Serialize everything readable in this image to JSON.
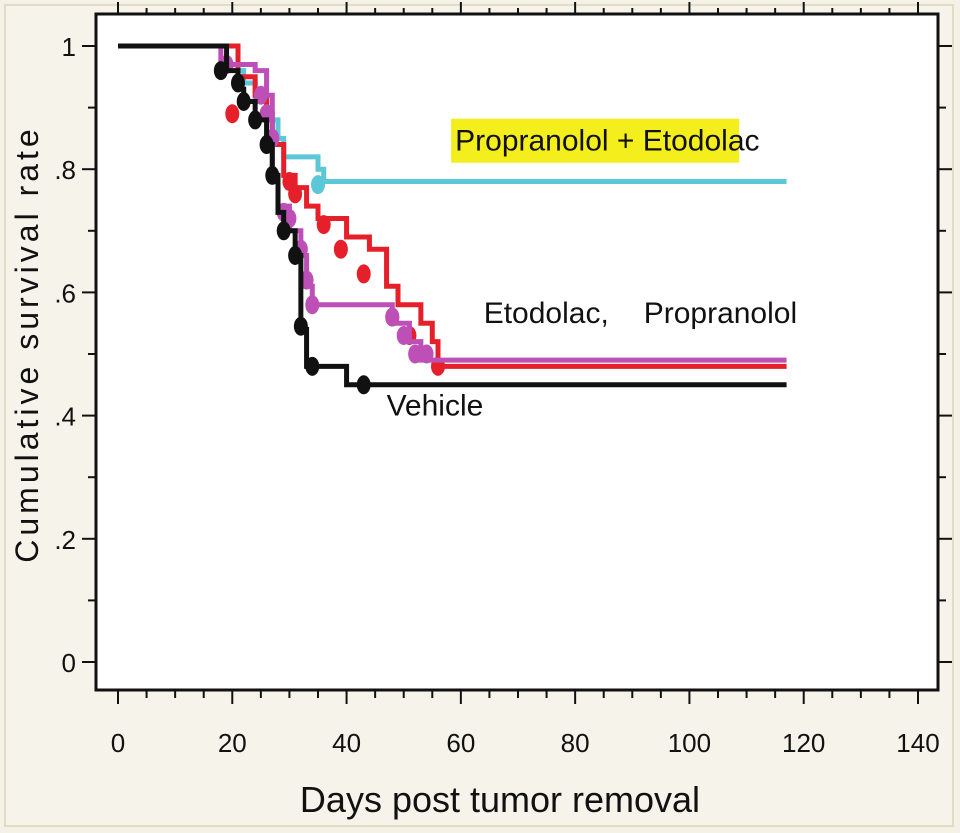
{
  "chart_data": {
    "type": "line",
    "subtype": "kaplan-meier step",
    "xlabel": "Days post tumor removal",
    "ylabel": "Cumulative survival rate",
    "xlim": [
      -4,
      142
    ],
    "ylim": [
      -0.05,
      1.05
    ],
    "x_ticks": [
      0,
      20,
      40,
      60,
      80,
      100,
      120,
      140
    ],
    "y_ticks": [
      0,
      0.2,
      0.4,
      0.6,
      0.8,
      1
    ],
    "y_tick_labels": [
      "0",
      ".2",
      ".4",
      ".6",
      ".8",
      "1"
    ],
    "grid": false,
    "annotations": [
      {
        "id": "annot-prop-etod",
        "text": "Propranolol + Etodolac",
        "highlight": "#f3ee1c",
        "x": 59,
        "y": 0.83
      },
      {
        "id": "annot-etodolac",
        "text": "Etodolac,",
        "x": 64,
        "y": 0.55
      },
      {
        "id": "annot-propranolol",
        "text": "Propranolol",
        "x": 92,
        "y": 0.55
      },
      {
        "id": "annot-vehicle",
        "text": "Vehicle",
        "x": 47,
        "y": 0.4
      }
    ],
    "series": [
      {
        "key": "propranolol-etodolac",
        "color": "#5cc7d6",
        "steps": [
          [
            0,
            1
          ],
          [
            20,
            1
          ],
          [
            21,
            0.96
          ],
          [
            22,
            0.94
          ],
          [
            24,
            0.91
          ],
          [
            26,
            0.88
          ],
          [
            28,
            0.85
          ],
          [
            29,
            0.82
          ],
          [
            35,
            0.8
          ],
          [
            36,
            0.78
          ],
          [
            117,
            0.78
          ]
        ],
        "censored": [
          [
            35,
            0.775
          ]
        ]
      },
      {
        "key": "etodolac",
        "color": "#e5202a",
        "steps": [
          [
            0,
            1
          ],
          [
            21,
            1
          ],
          [
            21,
            0.95
          ],
          [
            24,
            0.92
          ],
          [
            26,
            0.89
          ],
          [
            27,
            0.84
          ],
          [
            29,
            0.79
          ],
          [
            31,
            0.77
          ],
          [
            33,
            0.74
          ],
          [
            35,
            0.72
          ],
          [
            40,
            0.69
          ],
          [
            44,
            0.67
          ],
          [
            47,
            0.61
          ],
          [
            49,
            0.58
          ],
          [
            53,
            0.55
          ],
          [
            55,
            0.52
          ],
          [
            56,
            0.48
          ],
          [
            117,
            0.48
          ]
        ],
        "censored": [
          [
            20,
            0.89
          ],
          [
            30,
            0.78
          ],
          [
            31,
            0.76
          ],
          [
            36,
            0.71
          ],
          [
            39,
            0.67
          ],
          [
            43,
            0.63
          ],
          [
            48,
            0.56
          ],
          [
            51,
            0.53
          ],
          [
            56,
            0.48
          ]
        ]
      },
      {
        "key": "propranolol",
        "color": "#bd4fb6",
        "steps": [
          [
            0,
            1
          ],
          [
            18,
            1
          ],
          [
            18,
            0.97
          ],
          [
            24,
            0.96
          ],
          [
            26,
            0.92
          ],
          [
            27,
            0.86
          ],
          [
            27,
            0.79
          ],
          [
            28,
            0.74
          ],
          [
            30,
            0.7
          ],
          [
            32,
            0.66
          ],
          [
            33,
            0.61
          ],
          [
            34,
            0.58
          ],
          [
            45,
            0.58
          ],
          [
            48,
            0.55
          ],
          [
            51,
            0.52
          ],
          [
            53,
            0.49
          ],
          [
            117,
            0.49
          ]
        ],
        "censored": [
          [
            19,
            0.97
          ],
          [
            25,
            0.92
          ],
          [
            26,
            0.89
          ],
          [
            27,
            0.85
          ],
          [
            29,
            0.73
          ],
          [
            30,
            0.72
          ],
          [
            32,
            0.67
          ],
          [
            33,
            0.62
          ],
          [
            34,
            0.58
          ],
          [
            48,
            0.56
          ],
          [
            50,
            0.53
          ],
          [
            52,
            0.5
          ],
          [
            54,
            0.5
          ]
        ]
      },
      {
        "key": "vehicle",
        "color": "#111111",
        "steps": [
          [
            0,
            1
          ],
          [
            18,
            1
          ],
          [
            19,
            0.96
          ],
          [
            21,
            0.93
          ],
          [
            22,
            0.91
          ],
          [
            24,
            0.88
          ],
          [
            26,
            0.84
          ],
          [
            27,
            0.79
          ],
          [
            28,
            0.73
          ],
          [
            29,
            0.7
          ],
          [
            31,
            0.66
          ],
          [
            32,
            0.54
          ],
          [
            33,
            0.48
          ],
          [
            34,
            0.48
          ],
          [
            39,
            0.48
          ],
          [
            40,
            0.45
          ],
          [
            117,
            0.45
          ]
        ],
        "censored": [
          [
            18,
            0.96
          ],
          [
            21,
            0.94
          ],
          [
            22,
            0.91
          ],
          [
            24,
            0.88
          ],
          [
            26,
            0.84
          ],
          [
            27,
            0.79
          ],
          [
            29,
            0.7
          ],
          [
            31,
            0.66
          ],
          [
            32,
            0.545
          ],
          [
            34,
            0.48
          ],
          [
            43,
            0.45
          ]
        ]
      }
    ]
  }
}
